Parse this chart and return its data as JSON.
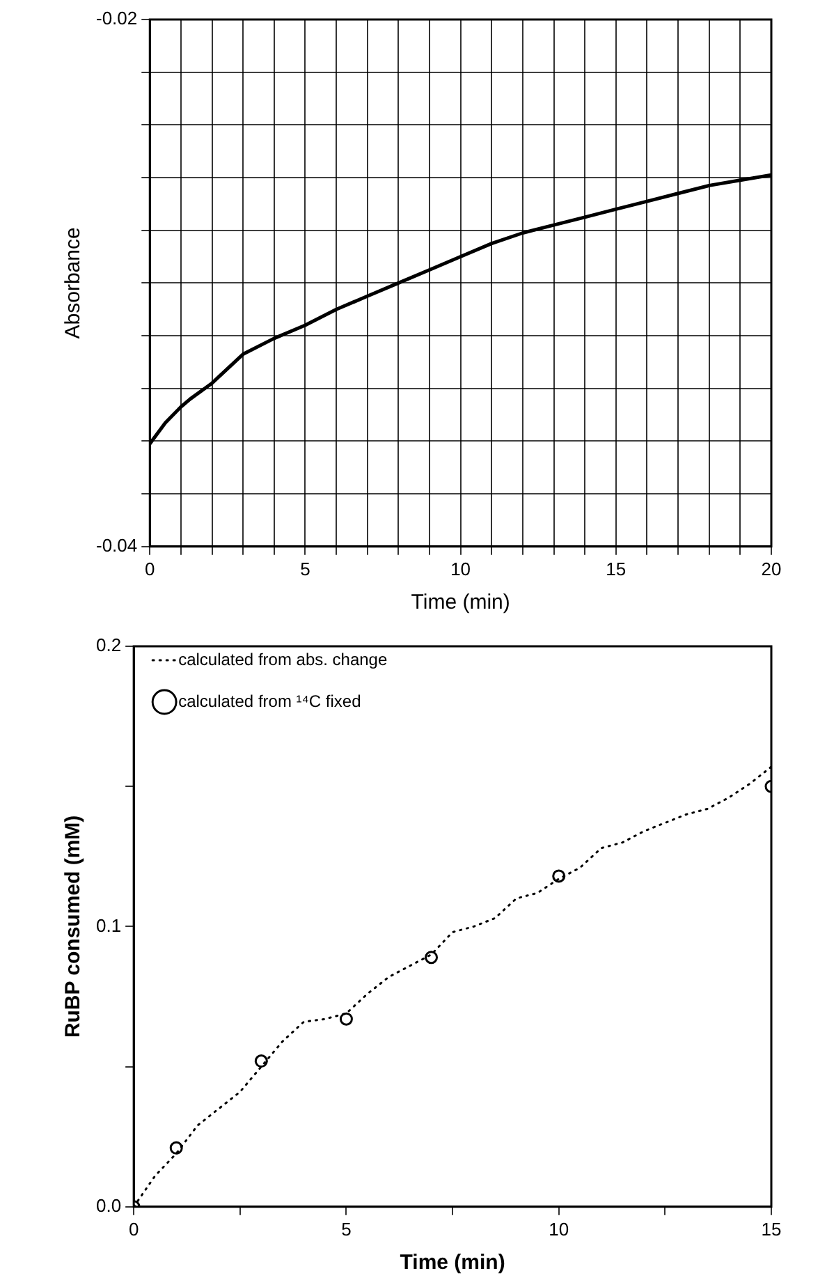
{
  "chart_data": [
    {
      "type": "line",
      "xlabel": "Time (min)",
      "ylabel": "Absorbance",
      "color": "#000000",
      "grid": true,
      "marker": "none",
      "line_style": "solid",
      "x": [
        0,
        0.5,
        1,
        1.3,
        2,
        3,
        4,
        5,
        6,
        7,
        8,
        9,
        10,
        11,
        12,
        13,
        14,
        15,
        16,
        17,
        18,
        19,
        20
      ],
      "values": [
        -0.0361,
        -0.0353,
        -0.0347,
        -0.0344,
        -0.0338,
        -0.0327,
        -0.0321,
        -0.0316,
        -0.031,
        -0.0305,
        -0.03,
        -0.0295,
        -0.029,
        -0.0285,
        -0.0281,
        -0.0278,
        -0.0275,
        -0.0272,
        -0.0269,
        -0.0266,
        -0.0263,
        -0.0261,
        -0.0259
      ],
      "xlim": [
        0,
        20
      ],
      "ylim": [
        -0.04,
        -0.02
      ],
      "xticks": [
        0,
        {
          "value": 1,
          "label": null
        },
        {
          "value": 2,
          "label": null
        },
        {
          "value": 3,
          "label": null
        },
        {
          "value": 4,
          "label": null
        },
        5,
        {
          "value": 6,
          "label": null
        },
        {
          "value": 7,
          "label": null
        },
        {
          "value": 8,
          "label": null
        },
        {
          "value": 9,
          "label": null
        },
        10,
        {
          "value": 11,
          "label": null
        },
        {
          "value": 12,
          "label": null
        },
        {
          "value": 13,
          "label": null
        },
        {
          "value": 14,
          "label": null
        },
        15,
        {
          "value": 16,
          "label": null
        },
        {
          "value": 17,
          "label": null
        },
        {
          "value": 18,
          "label": null
        },
        {
          "value": 19,
          "label": null
        },
        20
      ],
      "yticks": [
        -0.04,
        {
          "value": -0.038,
          "label": null
        },
        {
          "value": -0.036,
          "label": null
        },
        {
          "value": -0.034,
          "label": null
        },
        {
          "value": -0.032,
          "label": null
        },
        {
          "value": -0.03,
          "label": null
        },
        {
          "value": -0.028,
          "label": null
        },
        {
          "value": -0.026,
          "label": null
        },
        {
          "value": -0.024,
          "label": null
        },
        {
          "value": -0.022,
          "label": null
        },
        -0.02
      ]
    },
    {
      "type": "line",
      "xlabel": "Time (min)",
      "ylabel": "RuBP consumed (mM)",
      "grid": false,
      "legend": "top left",
      "xlim": [
        0,
        15
      ],
      "ylim": [
        0,
        0.2
      ],
      "xticks": [
        0,
        {
          "value": 2.5,
          "label": null
        },
        5,
        {
          "value": 7.5,
          "label": null
        },
        10,
        {
          "value": 12.5,
          "label": null
        },
        15
      ],
      "yticks": [
        {
          "value": 0,
          "label": "0.0"
        },
        {
          "value": 0.05,
          "label": null
        },
        0.1,
        {
          "value": 0.15,
          "label": null
        },
        0.2
      ],
      "series": [
        {
          "name": "calculated from abs. change",
          "type": "line",
          "color": "#000000",
          "marker": "none",
          "line_style": "dotted",
          "x": [
            0,
            0.5,
            1,
            1.5,
            2,
            2.5,
            3,
            3.5,
            4,
            4.5,
            5,
            5.5,
            6,
            6.5,
            7,
            7.5,
            8,
            8.5,
            9,
            9.5,
            10,
            10.5,
            11,
            11.5,
            12,
            12.5,
            13,
            13.5,
            14,
            14.5,
            15
          ],
          "values": [
            0,
            0.011,
            0.019,
            0.029,
            0.035,
            0.041,
            0.05,
            0.059,
            0.066,
            0.067,
            0.069,
            0.076,
            0.082,
            0.086,
            0.09,
            0.098,
            0.1,
            0.103,
            0.11,
            0.112,
            0.117,
            0.121,
            0.128,
            0.13,
            0.134,
            0.137,
            0.14,
            0.142,
            0.146,
            0.151,
            0.157
          ]
        },
        {
          "name": "calculated from ¹⁴C fixed",
          "type": "scatter",
          "color": "#000000",
          "marker": "circle",
          "x": [
            0,
            1,
            3,
            5,
            7,
            10,
            15
          ],
          "values": [
            0,
            0.021,
            0.052,
            0.067,
            0.089,
            0.118,
            0.15
          ]
        }
      ]
    }
  ]
}
